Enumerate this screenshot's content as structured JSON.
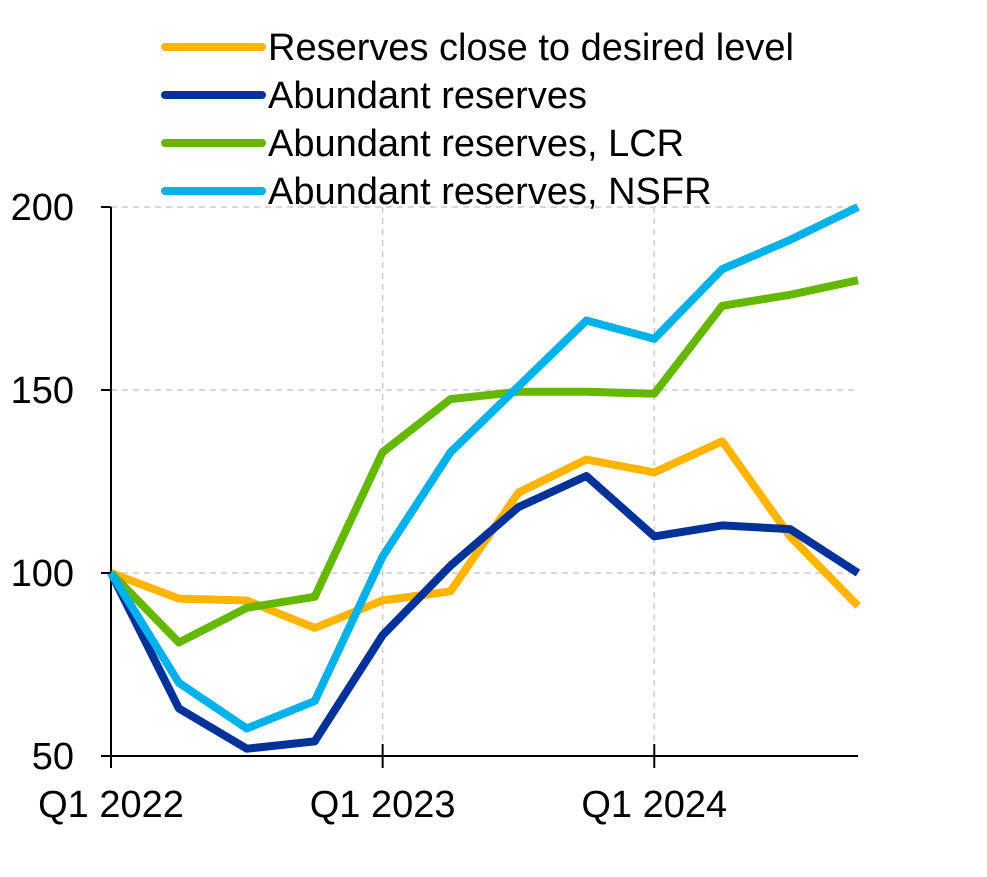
{
  "chart_data": {
    "type": "line",
    "title": "",
    "xlabel": "",
    "ylabel": "",
    "x": [
      "Q1 2022",
      "Q2 2022",
      "Q3 2022",
      "Q4 2022",
      "Q1 2023",
      "Q2 2023",
      "Q3 2023",
      "Q4 2023",
      "Q1 2024",
      "Q2 2024",
      "Q3 2024",
      "Q4 2024"
    ],
    "x_tick_labels": [
      "Q1 2022",
      "Q1 2023",
      "Q1 2024"
    ],
    "x_tick_indices": [
      0,
      4,
      8
    ],
    "y_ticks": [
      50,
      100,
      150,
      200
    ],
    "y_tick_labels": [
      "50",
      "100",
      "150",
      "200"
    ],
    "ylim": [
      50,
      200
    ],
    "grid": true,
    "legend_position": "top",
    "series": [
      {
        "name": "Reserves close to desired level",
        "color": "#FFB400",
        "values": [
          100,
          93,
          92.5,
          85,
          92.5,
          95,
          122,
          131,
          127.5,
          136,
          110,
          91
        ]
      },
      {
        "name": "Abundant reserves",
        "color": "#003299",
        "values": [
          100,
          63,
          52,
          54,
          83,
          102,
          118,
          126.5,
          110,
          113,
          112,
          100
        ]
      },
      {
        "name": "Abundant reserves, LCR",
        "color": "#65B800",
        "values": [
          100,
          81,
          90.5,
          93.5,
          133,
          147.5,
          149.5,
          149.5,
          149,
          173,
          176,
          180
        ]
      },
      {
        "name": "Abundant reserves, NSFR",
        "color": "#00B1EA",
        "values": [
          100,
          70,
          57.5,
          65,
          104.5,
          133,
          151,
          169,
          164,
          183,
          191,
          200
        ]
      }
    ]
  }
}
